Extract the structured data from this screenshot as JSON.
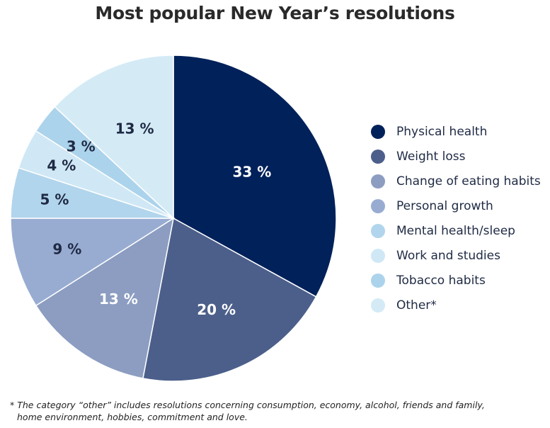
{
  "chart_data": {
    "type": "pie",
    "title": "Most popular New Year’s resolutions",
    "categories": [
      "Physical health",
      "Weight loss",
      "Change of eating habits",
      "Personal growth",
      "Mental health/sleep",
      "Work and studies",
      "Tobacco habits",
      "Other*"
    ],
    "values": [
      33,
      20,
      13,
      9,
      5,
      4,
      3,
      13
    ],
    "value_labels": [
      "33 %",
      "20 %",
      "13 %",
      "9 %",
      "5 %",
      "4 %",
      "3 %",
      "13 %"
    ],
    "colors": [
      "#00215a",
      "#4c5f8b",
      "#8c9dc1",
      "#98acd2",
      "#b1d5ec",
      "#d0e8f5",
      "#acd3ec",
      "#d4ebf6"
    ],
    "label_colors": [
      "#ffffff",
      "#ffffff",
      "#ffffff",
      "#1f2a44",
      "#1f2a44",
      "#1f2a44",
      "#1f2a44",
      "#1f2a44"
    ],
    "legend_placement": "right"
  },
  "footnote": {
    "line1": "* The category “other” includes resolutions concerning consumption, economy, alcohol, friends and family,",
    "line2": "home environment, hobbies, commitment and love."
  }
}
